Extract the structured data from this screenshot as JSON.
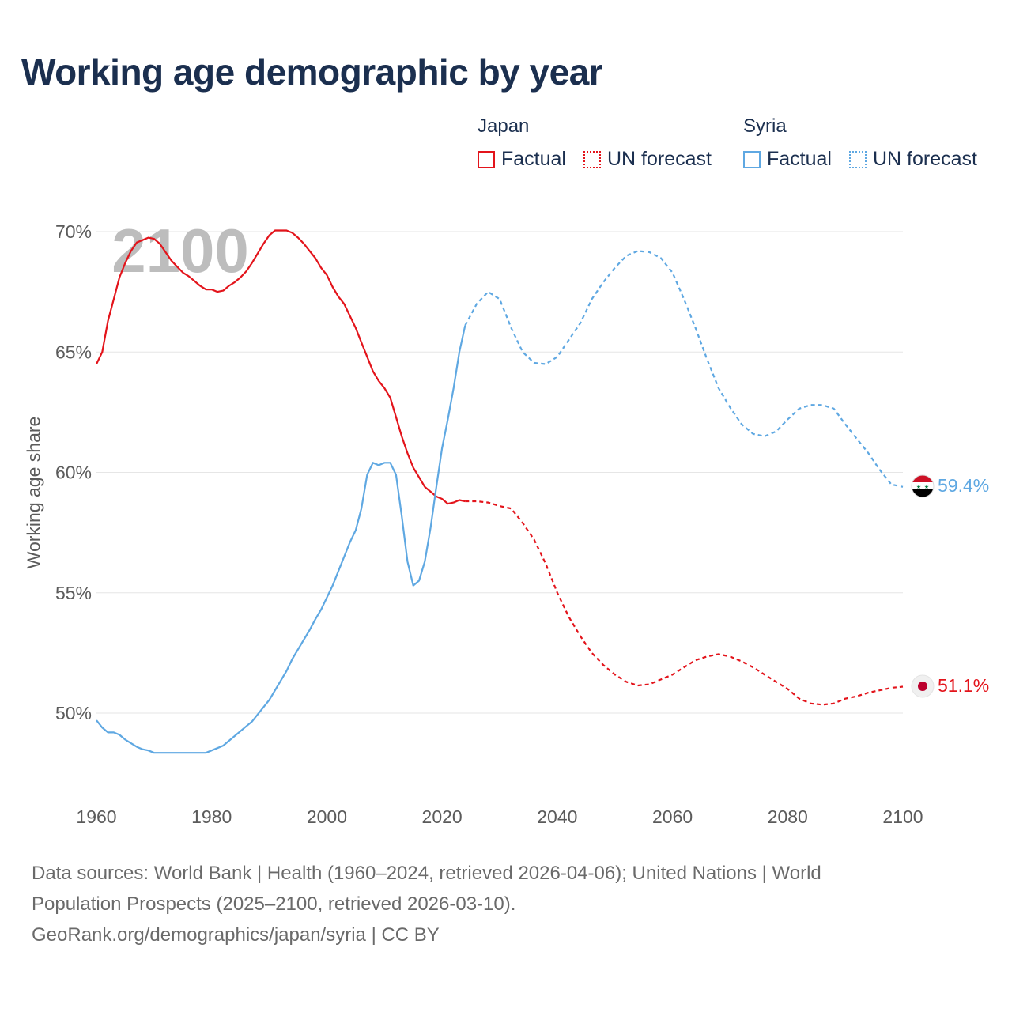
{
  "title": "Working age demographic by year",
  "legend": {
    "groups": [
      {
        "name": "Japan",
        "color": "#e3141b",
        "factual_label": "Factual",
        "forecast_label": "UN forecast"
      },
      {
        "name": "Syria",
        "color": "#5fa8e2",
        "factual_label": "Factual",
        "forecast_label": "UN forecast"
      }
    ]
  },
  "year_watermark": "2100",
  "y_axis_label": "Working age share",
  "end_labels": {
    "japan": "51.1%",
    "syria": "59.4%"
  },
  "source": {
    "line1": "Data sources: World Bank | Health (1960–2024, retrieved 2026-04-06); United Nations | World",
    "line2": "Population Prospects (2025–2100, retrieved 2026-03-10).",
    "line3": "GeoRank.org/demographics/japan/syria | CC BY"
  },
  "chart_data": {
    "type": "line",
    "title": "Working age demographic by year",
    "xlabel": "",
    "ylabel": "Working age share",
    "xlim": [
      1960,
      2100
    ],
    "ylim": [
      46.5,
      70.5
    ],
    "x_ticks": [
      1960,
      1980,
      2000,
      2020,
      2040,
      2060,
      2080,
      2100
    ],
    "y_ticks": [
      50,
      55,
      60,
      65,
      70
    ],
    "y_tick_labels": [
      "50%",
      "55%",
      "60%",
      "65%",
      "70%"
    ],
    "x_tick_labels": [
      "1960",
      "1980",
      "2000",
      "2020",
      "2040",
      "2060",
      "2080",
      "2100"
    ],
    "grid": true,
    "forecast_start": 2024,
    "series": [
      {
        "name": "Japan",
        "color": "#e3141b",
        "factual": {
          "x": [
            1960,
            1961,
            1962,
            1963,
            1964,
            1965,
            1966,
            1967,
            1968,
            1969,
            1970,
            1971,
            1972,
            1973,
            1974,
            1975,
            1976,
            1977,
            1978,
            1979,
            1980,
            1981,
            1982,
            1983,
            1984,
            1985,
            1986,
            1987,
            1988,
            1989,
            1990,
            1991,
            1992,
            1993,
            1994,
            1995,
            1996,
            1997,
            1998,
            1999,
            2000,
            2001,
            2002,
            2003,
            2004,
            2005,
            2006,
            2007,
            2008,
            2009,
            2010,
            2011,
            2012,
            2013,
            2014,
            2015,
            2016,
            2017,
            2018,
            2019,
            2020,
            2021,
            2022,
            2023,
            2024
          ],
          "values": [
            64.5,
            65.0,
            66.3,
            67.2,
            68.1,
            68.7,
            69.2,
            69.55,
            69.65,
            69.75,
            69.7,
            69.5,
            69.15,
            68.8,
            68.55,
            68.3,
            68.15,
            67.95,
            67.75,
            67.6,
            67.6,
            67.5,
            67.55,
            67.75,
            67.9,
            68.1,
            68.35,
            68.7,
            69.1,
            69.5,
            69.85,
            70.05,
            70.05,
            70.05,
            69.95,
            69.75,
            69.5,
            69.2,
            68.9,
            68.5,
            68.2,
            67.7,
            67.3,
            67.0,
            66.5,
            66.0,
            65.4,
            64.8,
            64.2,
            63.8,
            63.5,
            63.1,
            62.3,
            61.5,
            60.8,
            60.2,
            59.8,
            59.4,
            59.2,
            59.0,
            58.9,
            58.7,
            58.75,
            58.85,
            58.8
          ]
        },
        "forecast": {
          "x": [
            2024,
            2026,
            2028,
            2030,
            2032,
            2034,
            2036,
            2038,
            2040,
            2042,
            2044,
            2046,
            2048,
            2050,
            2052,
            2054,
            2056,
            2058,
            2060,
            2062,
            2064,
            2066,
            2068,
            2070,
            2072,
            2074,
            2076,
            2078,
            2080,
            2082,
            2084,
            2086,
            2088,
            2090,
            2092,
            2094,
            2096,
            2098,
            2100
          ],
          "values": [
            58.8,
            58.8,
            58.75,
            58.6,
            58.5,
            57.9,
            57.2,
            56.2,
            55.0,
            54.0,
            53.2,
            52.5,
            52.0,
            51.6,
            51.3,
            51.15,
            51.2,
            51.4,
            51.6,
            51.9,
            52.2,
            52.35,
            52.45,
            52.35,
            52.15,
            51.9,
            51.6,
            51.3,
            51.0,
            50.6,
            50.4,
            50.35,
            50.4,
            50.6,
            50.7,
            50.85,
            50.95,
            51.05,
            51.1
          ]
        },
        "last_value": 51.1
      },
      {
        "name": "Syria",
        "color": "#5fa8e2",
        "factual": {
          "x": [
            1960,
            1961,
            1962,
            1963,
            1964,
            1965,
            1966,
            1967,
            1968,
            1969,
            1970,
            1971,
            1972,
            1973,
            1974,
            1975,
            1976,
            1977,
            1978,
            1979,
            1980,
            1981,
            1982,
            1983,
            1984,
            1985,
            1986,
            1987,
            1988,
            1989,
            1990,
            1991,
            1992,
            1993,
            1994,
            1995,
            1996,
            1997,
            1998,
            1999,
            2000,
            2001,
            2002,
            2003,
            2004,
            2005,
            2006,
            2007,
            2008,
            2009,
            2010,
            2011,
            2012,
            2013,
            2014,
            2015,
            2016,
            2017,
            2018,
            2019,
            2020,
            2021,
            2022,
            2023,
            2024
          ],
          "values": [
            49.7,
            49.4,
            49.2,
            49.2,
            49.1,
            48.9,
            48.75,
            48.6,
            48.5,
            48.45,
            48.35,
            48.35,
            48.35,
            48.35,
            48.35,
            48.35,
            48.35,
            48.35,
            48.35,
            48.35,
            48.45,
            48.55,
            48.65,
            48.85,
            49.05,
            49.25,
            49.45,
            49.65,
            49.95,
            50.25,
            50.55,
            50.95,
            51.35,
            51.75,
            52.25,
            52.65,
            53.05,
            53.45,
            53.9,
            54.3,
            54.8,
            55.3,
            55.9,
            56.5,
            57.1,
            57.6,
            58.5,
            59.9,
            60.4,
            60.3,
            60.4,
            60.4,
            59.9,
            58.2,
            56.3,
            55.3,
            55.5,
            56.3,
            57.7,
            59.4,
            61.0,
            62.2,
            63.5,
            65.0,
            66.1
          ]
        },
        "forecast": {
          "x": [
            2024,
            2026,
            2028,
            2030,
            2032,
            2034,
            2036,
            2038,
            2040,
            2042,
            2044,
            2046,
            2048,
            2050,
            2052,
            2054,
            2056,
            2058,
            2060,
            2062,
            2064,
            2066,
            2068,
            2070,
            2072,
            2074,
            2076,
            2078,
            2080,
            2082,
            2084,
            2086,
            2088,
            2090,
            2092,
            2094,
            2096,
            2098,
            2100
          ],
          "values": [
            66.1,
            67.0,
            67.5,
            67.2,
            66.0,
            65.0,
            64.55,
            64.5,
            64.8,
            65.5,
            66.2,
            67.2,
            67.9,
            68.5,
            69.0,
            69.2,
            69.15,
            68.9,
            68.3,
            67.2,
            66.0,
            64.7,
            63.5,
            62.7,
            62.0,
            61.6,
            61.5,
            61.7,
            62.2,
            62.65,
            62.8,
            62.8,
            62.65,
            62.0,
            61.4,
            60.8,
            60.1,
            59.5,
            59.4
          ]
        },
        "last_value": 59.4
      }
    ]
  }
}
